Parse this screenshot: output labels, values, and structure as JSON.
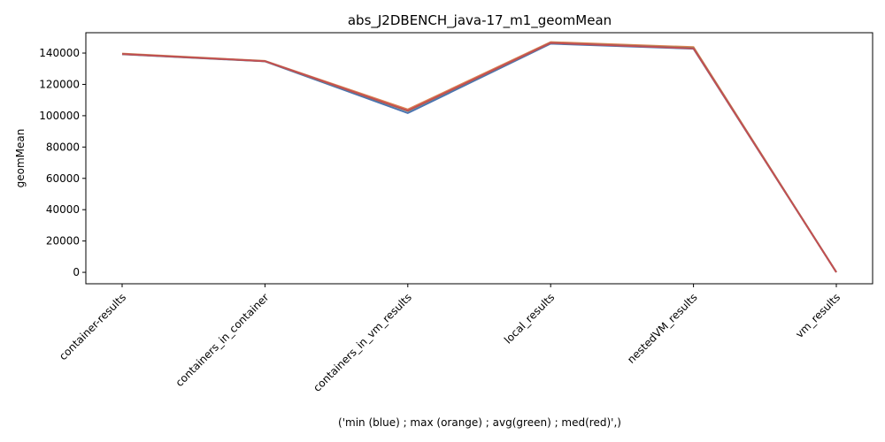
{
  "chart_data": {
    "type": "line",
    "title": "abs_J2DBENCH_java-17_m1_geomMean",
    "xlabel": "('min (blue) ; max (orange) ; avg(green) ; med(red)',)",
    "ylabel": "geomMean",
    "categories": [
      "container-results",
      "containers_in_container",
      "containers_in_vm_results",
      "local_results",
      "nestedVM_results",
      "vm_results"
    ],
    "ylim": [
      -7300,
      153000
    ],
    "yticks": [
      0,
      20000,
      40000,
      60000,
      80000,
      100000,
      120000,
      140000
    ],
    "grid": false,
    "series": [
      {
        "color": "#4c72b0",
        "values": [
          139200,
          134700,
          101700,
          146000,
          142800,
          80
        ]
      },
      {
        "color": "#dd8452",
        "values": [
          139700,
          135000,
          104000,
          147000,
          143800,
          120
        ]
      },
      {
        "color": "#55a868",
        "values": [
          139400,
          134800,
          103000,
          146500,
          143200,
          100
        ]
      },
      {
        "color": "#c44e52",
        "values": [
          139400,
          134800,
          103200,
          146500,
          143000,
          100
        ]
      }
    ]
  }
}
